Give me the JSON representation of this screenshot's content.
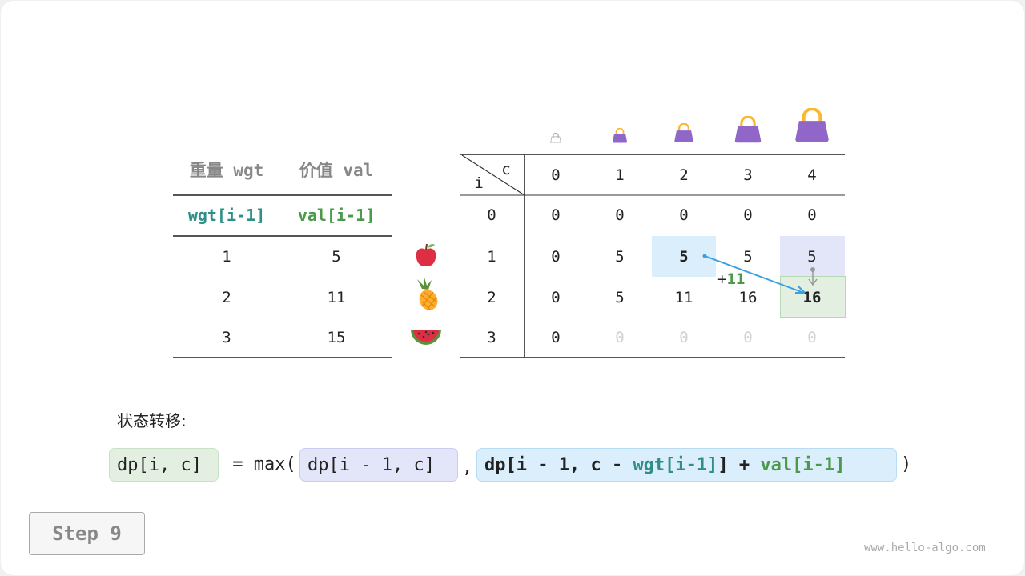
{
  "items_table": {
    "headers": [
      "重量 wgt",
      "价值 val"
    ],
    "subheaders": [
      "wgt[i-1]",
      "val[i-1]"
    ],
    "rows": [
      [
        "1",
        "5"
      ],
      [
        "2",
        "11"
      ],
      [
        "3",
        "15"
      ]
    ],
    "item_icons": [
      "apple-icon",
      "pineapple-icon",
      "watermelon-icon"
    ]
  },
  "dp_table": {
    "corner_col": "c",
    "corner_row": "i",
    "col_headers": [
      "0",
      "1",
      "2",
      "3",
      "4"
    ],
    "row_headers": [
      "0",
      "1",
      "2",
      "3"
    ],
    "rows": [
      [
        "0",
        "0",
        "0",
        "0",
        "0"
      ],
      [
        "0",
        "5",
        "5",
        "5",
        "5"
      ],
      [
        "0",
        "5",
        "11",
        "16",
        "16"
      ],
      [
        "0",
        "0",
        "0",
        "0",
        "0"
      ]
    ],
    "bag_icons": [
      "bag-icon-empty",
      "bag-icon-1",
      "bag-icon-2",
      "bag-icon-3",
      "bag-icon-4"
    ],
    "add_label": "+",
    "add_value": "11"
  },
  "colors": {
    "source_highlight": "#dbeefb",
    "upper_highlight": "#e3e6f8",
    "result_highlight": "#e3f0e1",
    "arrow": "#3aa0e0",
    "wgt": "#2f8f87",
    "val": "#4a9a4a",
    "bag": "#9066c9"
  },
  "formula": {
    "label": "状态转移:",
    "lhs": "dp[i, c]",
    "eq": " = max(",
    "opt1": "dp[i - 1, c]",
    "comma": ",",
    "opt2_a": "dp[i - 1, c - ",
    "opt2_wgt": "wgt[i-1]",
    "opt2_b": "] + ",
    "opt2_val": "val[i-1]",
    "close": ")"
  },
  "step_button": "Step 9",
  "watermark": "www.hello-algo.com"
}
